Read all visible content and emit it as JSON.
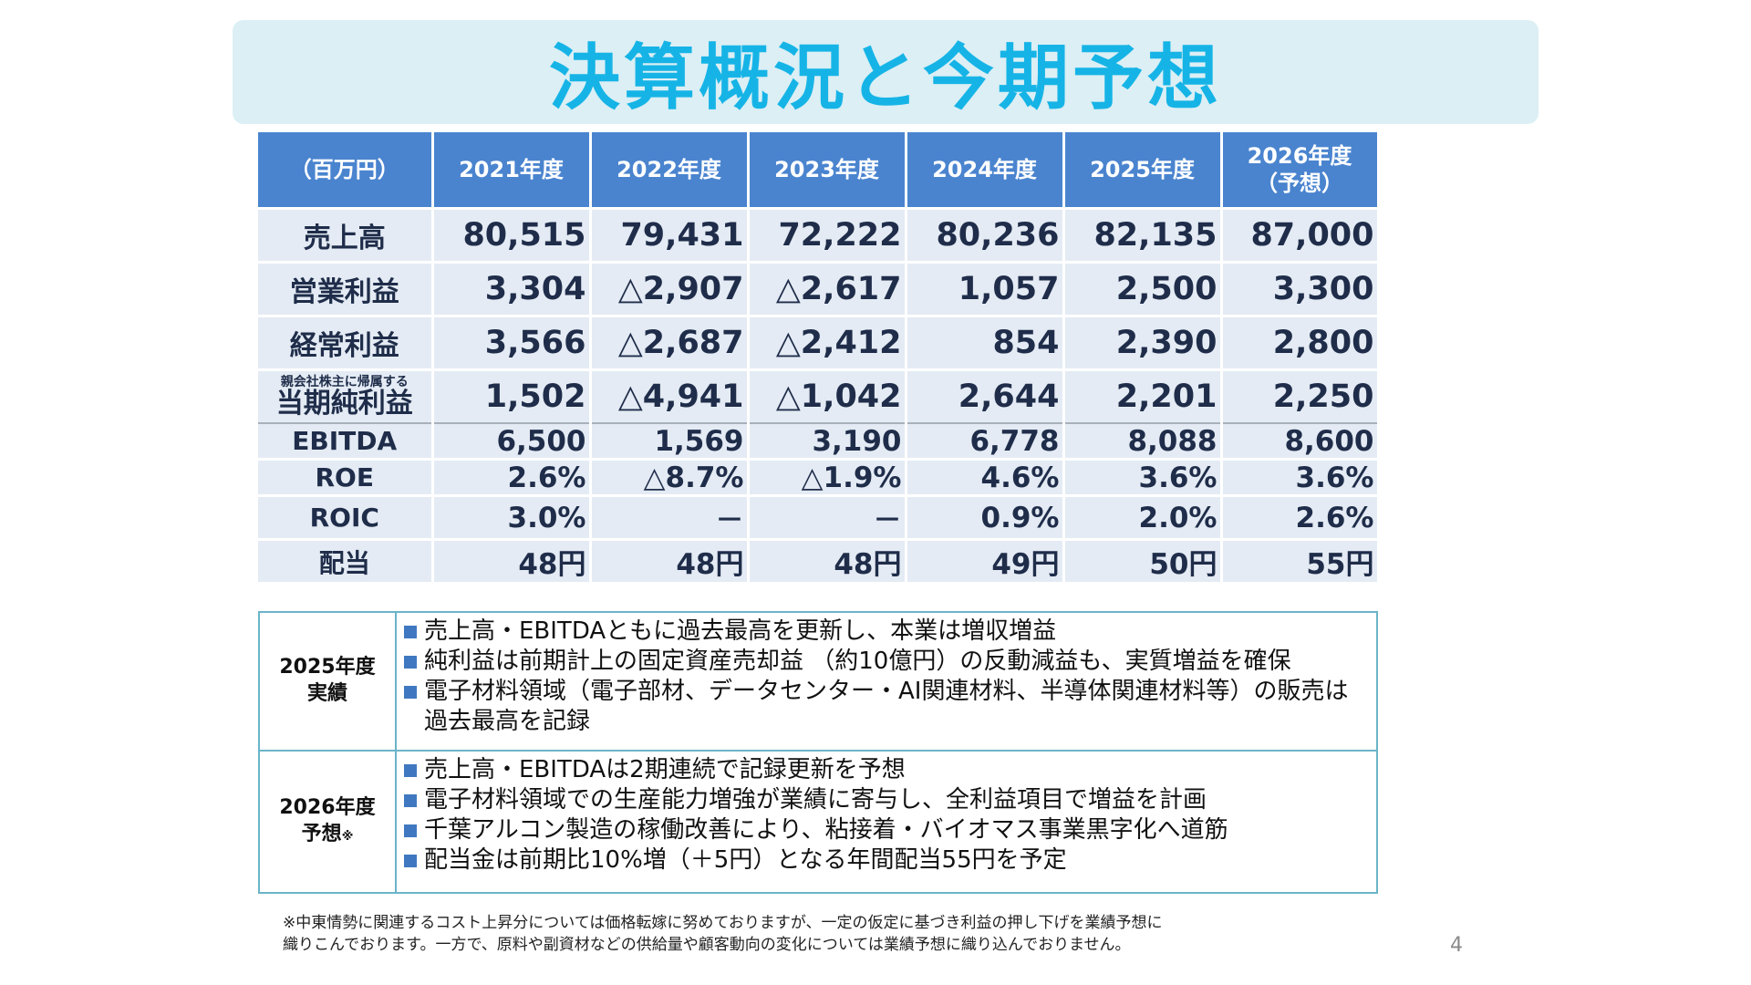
{
  "title": "決算概況と今期予想",
  "table": {
    "unit_label": "（百万円）",
    "years": [
      {
        "main": "2021年度",
        "sub": ""
      },
      {
        "main": "2022年度",
        "sub": ""
      },
      {
        "main": "2023年度",
        "sub": ""
      },
      {
        "main": "2024年度",
        "sub": ""
      },
      {
        "main": "2025年度",
        "sub": ""
      },
      {
        "main": "2026年度",
        "sub": "（予想）"
      }
    ],
    "rows": [
      {
        "label": "売上高",
        "label_small": "",
        "values": [
          "80,515",
          "79,431",
          "72,222",
          "80,236",
          "82,135",
          "87,000"
        ]
      },
      {
        "label": "営業利益",
        "label_small": "",
        "values": [
          "3,304",
          "△2,907",
          "△2,617",
          "1,057",
          "2,500",
          "3,300"
        ]
      },
      {
        "label": "経常利益",
        "label_small": "",
        "values": [
          "3,566",
          "△2,687",
          "△2,412",
          "854",
          "2,390",
          "2,800"
        ]
      },
      {
        "label": "当期純利益",
        "label_small": "親会社株主に帰属する",
        "values": [
          "1,502",
          "△4,941",
          "△1,042",
          "2,644",
          "2,201",
          "2,250"
        ]
      },
      {
        "label": "EBITDA",
        "label_small": "",
        "values": [
          "6,500",
          "1,569",
          "3,190",
          "6,778",
          "8,088",
          "8,600"
        ]
      },
      {
        "label": "ROE",
        "label_small": "",
        "values": [
          "2.6%",
          "△8.7%",
          "△1.9%",
          "4.6%",
          "3.6%",
          "3.6%"
        ]
      },
      {
        "label": "ROIC",
        "label_small": "",
        "values": [
          "3.0%",
          "－",
          "－",
          "0.9%",
          "2.0%",
          "2.6%"
        ]
      },
      {
        "label": "配当",
        "label_small": "",
        "values": [
          "48円",
          "48円",
          "48円",
          "49円",
          "50円",
          "55円"
        ]
      }
    ]
  },
  "notes": {
    "actual": {
      "head_line1": "2025年度",
      "head_line2": "実績",
      "bullets": [
        "売上高・EBITDAともに過去最高を更新し、本業は増収増益",
        "純利益は前期計上の固定資産売却益 （約10億円）の反動減益も、実質増益を確保",
        "電子材料領域（電子部材、データセンター・AI関連材料、半導体関連材料等）の販売は過去最高を記録"
      ]
    },
    "forecast": {
      "head_line1": "2026年度",
      "head_line2": "予想",
      "head_mark": "※",
      "bullets": [
        "売上高・EBITDAは2期連続で記録更新を予想",
        "電子材料領域での生産能力増強が業績に寄与し、全利益項目で増益を計画",
        "千葉アルコン製造の稼働改善により、粘接着・バイオマス事業黒字化へ道筋",
        "配当金は前期比10%増（＋5円）となる年間配当55円を予定"
      ]
    }
  },
  "footnote": {
    "line1": "※中東情勢に関連するコスト上昇分については価格転嫁に努めておりますが、一定の仮定に基づき利益の押し下げを業績予想に",
    "line2": "織りこんでおります。一方で、原料や副資材などの供給量や顧客動向の変化については業績予想に織り込んでおりません。"
  },
  "page_number": "4",
  "colors": {
    "title": "#16b4e6",
    "title_bg": "#dbeff5",
    "header_bg": "#4a84cf",
    "cell_bg": "#e4ebf4",
    "notes_border": "#6bb4c8",
    "bullet": "#3f78c0"
  }
}
